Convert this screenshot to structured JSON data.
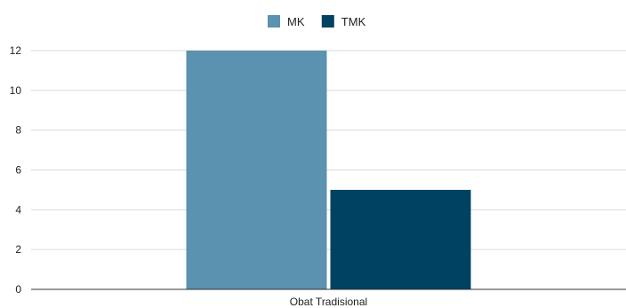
{
  "chart_data": {
    "type": "bar",
    "categories": [
      "Obat Tradisional"
    ],
    "series": [
      {
        "name": "MK",
        "values": [
          12
        ],
        "color": "#5b92b0"
      },
      {
        "name": "TMK",
        "values": [
          5
        ],
        "color": "#004261"
      }
    ],
    "title": "",
    "xlabel": "",
    "ylabel": "",
    "ylim": [
      0,
      12
    ],
    "yticks": [
      0,
      2,
      4,
      6,
      8,
      10,
      12
    ],
    "grid": true,
    "legend_position": "top-center"
  },
  "colors": {
    "gridline": "#d9d9d9",
    "axis": "#333333",
    "text": "#1f1f1f"
  }
}
